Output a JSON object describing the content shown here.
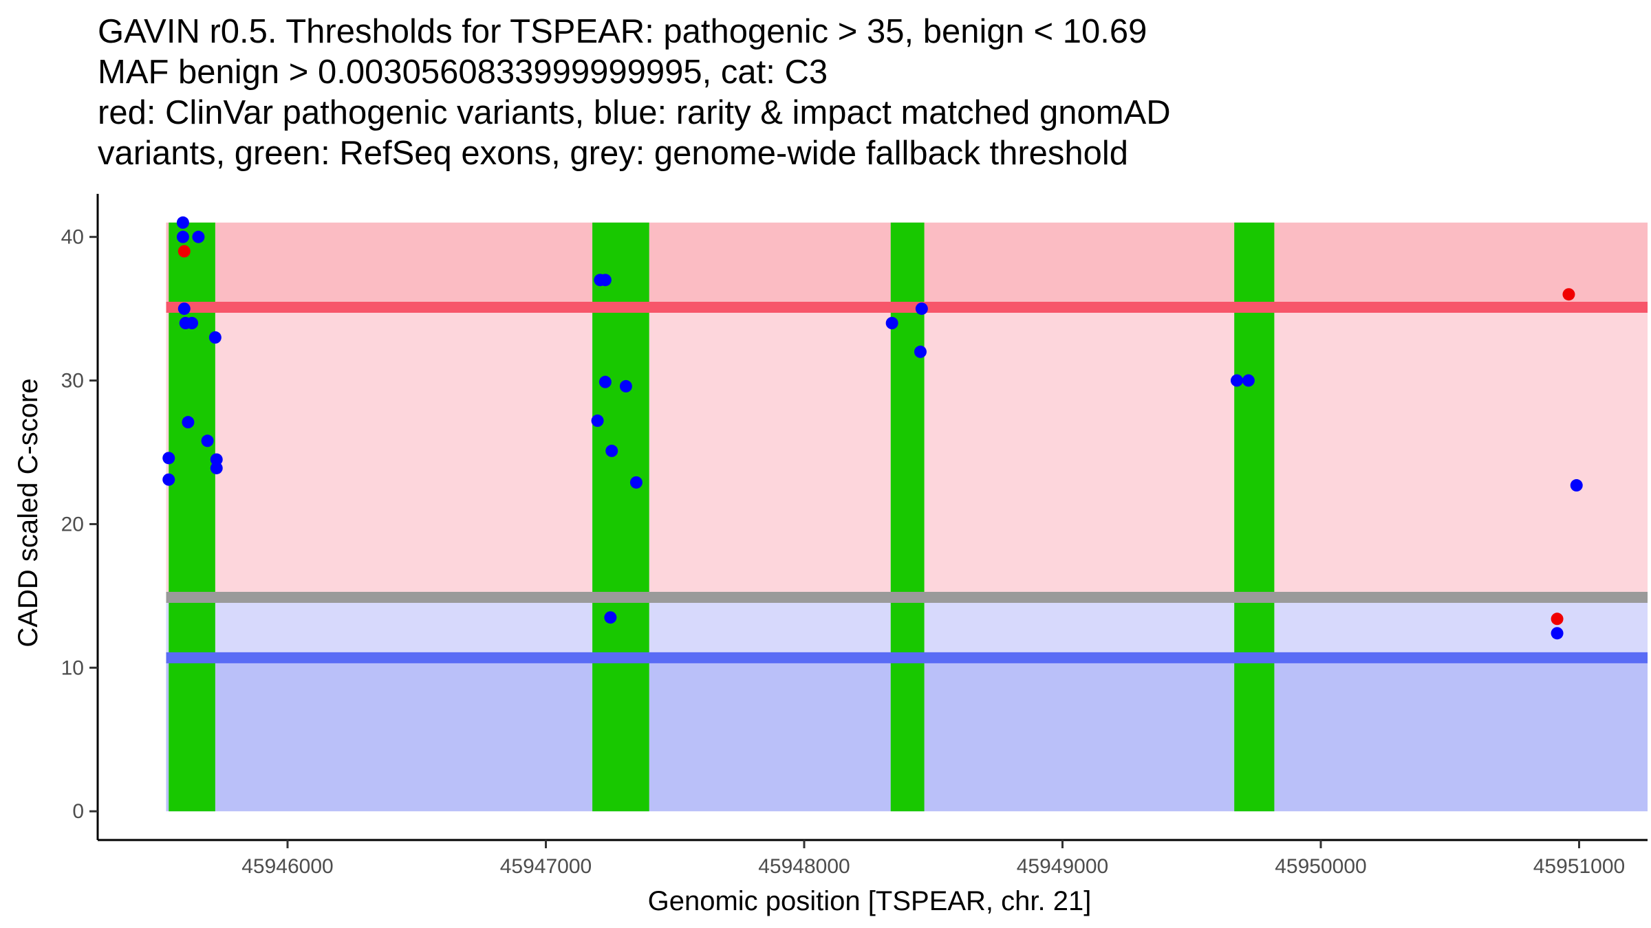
{
  "chart_data": {
    "type": "scatter",
    "title_lines": [
      "GAVIN r0.5. Thresholds for TSPEAR: pathogenic > 35, benign < 10.69",
      "MAF benign > 0.0030560833999999995, cat: C3",
      "red: ClinVar pathogenic variants, blue: rarity & impact matched gnomAD",
      "variants, green: RefSeq exons, grey: genome-wide fallback threshold"
    ],
    "xlabel": "Genomic position [TSPEAR, chr. 21]",
    "ylabel": "CADD scaled C-score",
    "xlim": [
      45945265,
      45951265
    ],
    "ylim": [
      -2,
      43
    ],
    "x_ticks": [
      45946000,
      45947000,
      45948000,
      45949000,
      45950000,
      45951000
    ],
    "y_ticks": [
      0,
      10,
      20,
      30,
      40
    ],
    "x_start": 45945530,
    "x_end": 45951265,
    "y_max": 41,
    "bands": [
      {
        "name": "pathogenic-zone-band",
        "y_from": 35,
        "y_to": 41,
        "color": "#fbbcc3"
      },
      {
        "name": "intermediate-zone-band",
        "y_from": 10.69,
        "y_to": 35,
        "color": "#fdd6dc"
      },
      {
        "name": "benign-light-band",
        "y_from": 10.69,
        "y_to": 14.6,
        "color": "#d7d9fc"
      },
      {
        "name": "benign-zone-band",
        "y_from": 0,
        "y_to": 10.69,
        "color": "#bac0f9"
      }
    ],
    "threshold_lines": [
      {
        "name": "pathogenic-threshold-line",
        "y": 35.1,
        "color": "#f7566a"
      },
      {
        "name": "fallback-threshold-line",
        "y": 14.9,
        "color": "#9a9a9a"
      },
      {
        "name": "benign-threshold-line",
        "y": 10.69,
        "color": "#5a6cf5"
      }
    ],
    "exons": [
      {
        "start": 45945540,
        "end": 45945720
      },
      {
        "start": 45947180,
        "end": 45947400
      },
      {
        "start": 45948335,
        "end": 45948465
      },
      {
        "start": 45949665,
        "end": 45949820
      }
    ],
    "colors": {
      "pathogenic": "#f00000",
      "gnomad": "#0000ff",
      "exon": "#18c800",
      "axis": "#000000"
    },
    "series": [
      {
        "name": "ClinVar pathogenic variants",
        "color": "#f00000",
        "points": [
          {
            "x": 45945600,
            "y": 39
          },
          {
            "x": 45950960,
            "y": 36
          },
          {
            "x": 45950915,
            "y": 13.4
          }
        ]
      },
      {
        "name": "gnomAD variants",
        "color": "#0000ff",
        "points": [
          {
            "x": 45945595,
            "y": 41
          },
          {
            "x": 45945595,
            "y": 40
          },
          {
            "x": 45945655,
            "y": 40
          },
          {
            "x": 45945600,
            "y": 35
          },
          {
            "x": 45945605,
            "y": 34
          },
          {
            "x": 45945630,
            "y": 34
          },
          {
            "x": 45945720,
            "y": 33
          },
          {
            "x": 45945615,
            "y": 27.1
          },
          {
            "x": 45945690,
            "y": 25.8
          },
          {
            "x": 45945540,
            "y": 24.6
          },
          {
            "x": 45945725,
            "y": 24.5
          },
          {
            "x": 45945725,
            "y": 23.9
          },
          {
            "x": 45945540,
            "y": 23.1
          },
          {
            "x": 45947210,
            "y": 37
          },
          {
            "x": 45947230,
            "y": 37
          },
          {
            "x": 45947230,
            "y": 29.9
          },
          {
            "x": 45947310,
            "y": 29.6
          },
          {
            "x": 45947200,
            "y": 27.2
          },
          {
            "x": 45947255,
            "y": 25.1
          },
          {
            "x": 45947350,
            "y": 22.9
          },
          {
            "x": 45947250,
            "y": 13.5
          },
          {
            "x": 45948340,
            "y": 34
          },
          {
            "x": 45948455,
            "y": 35
          },
          {
            "x": 45948450,
            "y": 32
          },
          {
            "x": 45949675,
            "y": 30
          },
          {
            "x": 45949720,
            "y": 30
          },
          {
            "x": 45950990,
            "y": 22.7
          },
          {
            "x": 45950915,
            "y": 12.4
          }
        ]
      }
    ]
  }
}
